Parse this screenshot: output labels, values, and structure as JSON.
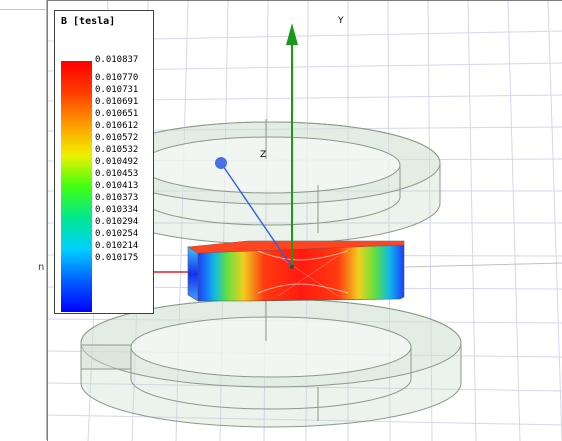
{
  "legend": {
    "title": "B [tesla]",
    "values": [
      "0.010837",
      "0.010770",
      "0.010731",
      "0.010691",
      "0.010651",
      "0.010612",
      "0.010572",
      "0.010532",
      "0.010492",
      "0.010453",
      "0.010413",
      "0.010373",
      "0.010334",
      "0.010294",
      "0.010254",
      "0.010214",
      "0.010175"
    ]
  },
  "axes": {
    "y_label": "Y",
    "z_label": "Z"
  },
  "side_panel": {
    "text": "n"
  },
  "colors": {
    "axis_y": "#1a9a1a",
    "axis_z": "#3060e0",
    "axis_x": "#e02020",
    "field_high": "#ff0000",
    "field_low": "#0000ff",
    "coil": "#c8d8c8"
  }
}
